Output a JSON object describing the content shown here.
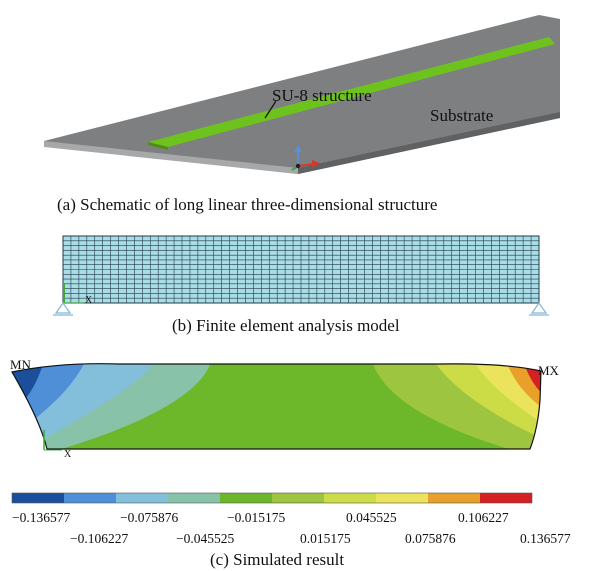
{
  "panel_a": {
    "label_su8": "SU-8 structure",
    "label_substrate": "Substrate",
    "caption": "(a)  Schematic of long linear three-dimensional structure",
    "colors": {
      "substrate": "#7d7f80",
      "substrate_edge": "#a6a8a9",
      "su8": "#6ec21e"
    }
  },
  "panel_b": {
    "caption": "(b)  Finite element analysis model",
    "axis_label": "X",
    "grid_columns": 60,
    "grid_rows": 14,
    "colors": {
      "mesh_fill": "#a9dde6",
      "mesh_line": "#243a4a"
    }
  },
  "panel_c": {
    "label_min": "MN",
    "label_max": "MX",
    "axis_label": "X",
    "caption": "(c)  Simulated result",
    "legend": {
      "colors": [
        "#1b4f9c",
        "#4e8fd8",
        "#83bfdb",
        "#88c2a8",
        "#6cb82a",
        "#9ec53f",
        "#ccdc46",
        "#ebe35c",
        "#e8a02a",
        "#d42222"
      ],
      "ticks_top": [
        "−0.136577",
        "−0.075876",
        "−0.015175",
        "0.045525",
        "0.106227"
      ],
      "ticks_bottom": [
        "−0.106227",
        "−0.045525",
        "0.015175",
        "0.075876",
        "0.136577"
      ]
    }
  }
}
